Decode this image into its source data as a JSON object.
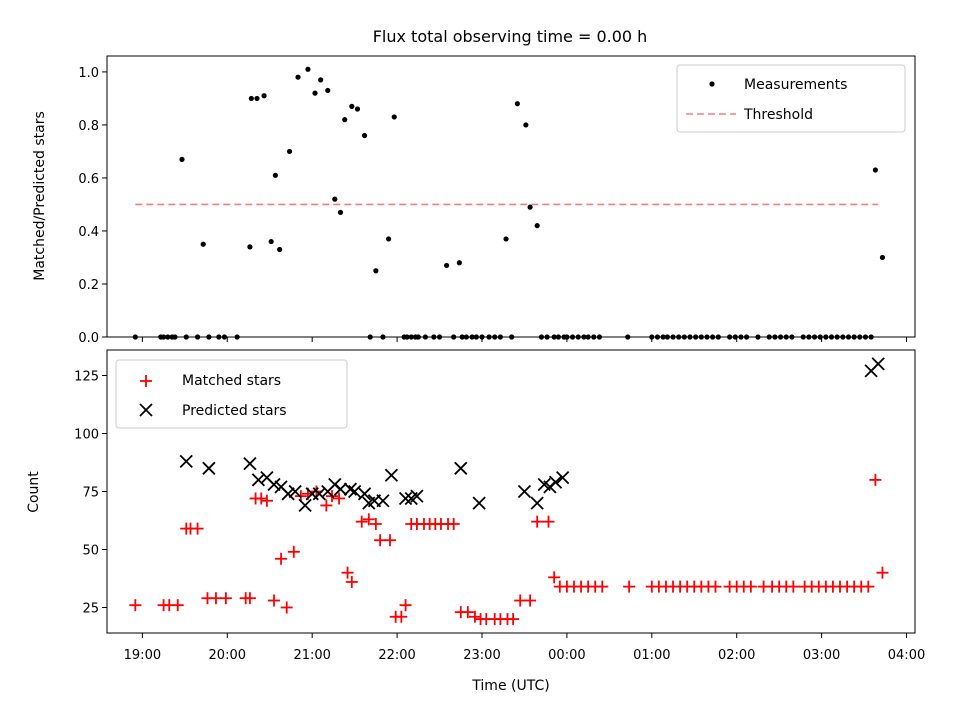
{
  "chart_data": [
    {
      "type": "scatter",
      "title": "Flux total observing time = 0.00 h",
      "xlabel": "",
      "ylabel": "Matched/Predicted stars",
      "ylim": [
        0.0,
        1.06
      ],
      "xlim": [
        "18:35",
        "04:06"
      ],
      "x_ticks": [],
      "y_ticks": [
        "0.0",
        "0.2",
        "0.4",
        "0.6",
        "0.8",
        "1.0"
      ],
      "legend_position": "upper right",
      "threshold": {
        "name": "Threshold",
        "value": 0.5,
        "color": "#f08080",
        "style": "dashed",
        "x_start": "18:55",
        "x_end": "03:40"
      },
      "series": [
        {
          "name": "Measurements",
          "color": "#000000",
          "marker": "dot",
          "x": [
            "18:55",
            "19:13",
            "19:15",
            "19:18",
            "19:21",
            "19:23",
            "19:28",
            "19:31",
            "19:39",
            "19:43",
            "19:47",
            "19:54",
            "19:58",
            "20:07",
            "20:16",
            "20:17",
            "20:21",
            "20:26",
            "20:31",
            "20:34",
            "20:37",
            "20:44",
            "20:50",
            "20:57",
            "21:02",
            "21:06",
            "21:11",
            "21:16",
            "21:20",
            "21:23",
            "21:28",
            "21:32",
            "21:37",
            "21:41",
            "21:45",
            "21:50",
            "21:54",
            "21:58",
            "22:05",
            "22:07",
            "22:10",
            "22:13",
            "22:15",
            "22:20",
            "22:26",
            "22:30",
            "22:35",
            "22:40",
            "22:44",
            "22:46",
            "22:49",
            "22:53",
            "22:56",
            "23:00",
            "23:05",
            "23:09",
            "23:13",
            "23:17",
            "23:21",
            "23:25",
            "23:31",
            "23:34",
            "23:39",
            "23:42",
            "23:46",
            "23:51",
            "23:54",
            "23:58",
            "24:00",
            "24:04",
            "24:08",
            "24:12",
            "24:15",
            "24:19",
            "24:23",
            "24:43",
            "25:00",
            "25:04",
            "25:08",
            "25:11",
            "25:15",
            "25:19",
            "25:23",
            "25:27",
            "25:31",
            "25:35",
            "25:39",
            "25:43",
            "25:47",
            "25:55",
            "25:59",
            "26:03",
            "26:07",
            "26:15",
            "26:23",
            "26:27",
            "26:31",
            "26:35",
            "26:39",
            "26:47",
            "26:51",
            "26:55",
            "26:59",
            "27:03",
            "27:07",
            "27:11",
            "27:15",
            "27:19",
            "27:23",
            "27:27",
            "27:31",
            "27:35",
            "27:38",
            "27:43"
          ],
          "y": [
            0.0,
            0.0,
            0.0,
            0.0,
            0.0,
            0.0,
            0.67,
            0.0,
            0.0,
            0.35,
            0.0,
            0.0,
            0.0,
            0.0,
            0.34,
            0.9,
            0.9,
            0.91,
            0.36,
            0.61,
            0.33,
            0.7,
            0.98,
            1.01,
            0.92,
            0.97,
            0.93,
            0.52,
            0.47,
            0.82,
            0.87,
            0.86,
            0.76,
            0.0,
            0.25,
            0.0,
            0.37,
            0.83,
            0.0,
            0.0,
            0.0,
            0.0,
            0.0,
            0.0,
            0.0,
            0.0,
            0.27,
            0.0,
            0.28,
            0.0,
            0.0,
            0.0,
            0.0,
            0.0,
            0.0,
            0.0,
            0.0,
            0.37,
            0.0,
            0.88,
            0.8,
            0.49,
            0.42,
            0.0,
            0.0,
            0.0,
            0.0,
            0.0,
            0.0,
            0.0,
            0.0,
            0.0,
            0.0,
            0.0,
            0.0,
            0.0,
            0.0,
            0.0,
            0.0,
            0.0,
            0.0,
            0.0,
            0.0,
            0.0,
            0.0,
            0.0,
            0.0,
            0.0,
            0.0,
            0.0,
            0.0,
            0.0,
            0.0,
            0.0,
            0.0,
            0.0,
            0.0,
            0.0,
            0.0,
            0.0,
            0.0,
            0.0,
            0.0,
            0.0,
            0.0,
            0.0,
            0.0,
            0.0,
            0.0,
            0.0,
            0.0,
            0.0,
            0.63,
            0.3
          ]
        }
      ]
    },
    {
      "type": "scatter",
      "title": "",
      "xlabel": "Time (UTC)",
      "ylabel": "Count",
      "ylim": [
        14,
        136
      ],
      "xlim": [
        "18:35",
        "04:06"
      ],
      "x_ticks": [
        "19:00",
        "20:00",
        "21:00",
        "22:00",
        "23:00",
        "00:00",
        "01:00",
        "02:00",
        "03:00",
        "04:00"
      ],
      "y_ticks": [
        "25",
        "50",
        "75",
        "100",
        "125"
      ],
      "legend_position": "upper left",
      "series": [
        {
          "name": "Matched stars",
          "color": "#ff0000",
          "marker": "plus",
          "x": [
            "18:55",
            "19:15",
            "19:19",
            "19:25",
            "19:31",
            "19:34",
            "19:39",
            "19:46",
            "19:52",
            "19:59",
            "20:13",
            "20:16",
            "20:20",
            "20:24",
            "20:28",
            "20:33",
            "20:38",
            "20:42",
            "20:47",
            "20:52",
            "20:57",
            "21:03",
            "21:10",
            "21:14",
            "21:19",
            "21:25",
            "21:28",
            "21:35",
            "21:40",
            "21:45",
            "21:48",
            "21:55",
            "21:59",
            "22:03",
            "22:06",
            "22:10",
            "22:14",
            "22:19",
            "22:23",
            "22:27",
            "22:31",
            "22:36",
            "22:40",
            "22:45",
            "22:50",
            "22:55",
            "22:59",
            "23:03",
            "23:09",
            "23:13",
            "23:18",
            "23:22",
            "23:27",
            "23:34",
            "23:39",
            "23:47",
            "23:51",
            "23:55",
            "24:00",
            "24:05",
            "24:10",
            "24:15",
            "24:20",
            "24:25",
            "24:44",
            "25:00",
            "25:05",
            "25:10",
            "25:15",
            "25:20",
            "25:25",
            "25:30",
            "25:35",
            "25:40",
            "25:45",
            "25:55",
            "26:00",
            "26:05",
            "26:10",
            "26:19",
            "26:25",
            "26:30",
            "26:35",
            "26:40",
            "26:48",
            "26:53",
            "26:58",
            "27:03",
            "27:08",
            "27:13",
            "27:18",
            "27:23",
            "27:28",
            "27:33",
            "27:38",
            "27:43"
          ],
          "y": [
            26,
            26,
            26,
            26,
            59,
            59,
            59,
            29,
            29,
            29,
            29,
            29,
            72,
            72,
            71,
            28,
            46,
            25,
            49,
            73,
            74,
            75,
            69,
            73,
            72,
            40,
            36,
            62,
            63,
            61,
            54,
            54,
            21,
            21,
            26,
            61,
            61,
            61,
            61,
            61,
            61,
            61,
            61,
            23,
            23,
            21,
            20,
            20,
            20,
            20,
            20,
            20,
            28,
            28,
            62,
            62,
            38,
            34,
            34,
            34,
            34,
            34,
            34,
            34,
            34,
            34,
            34,
            34,
            34,
            34,
            34,
            34,
            34,
            34,
            34,
            34,
            34,
            34,
            34,
            34,
            34,
            34,
            34,
            34,
            34,
            34,
            34,
            34,
            34,
            34,
            34,
            34,
            34,
            34,
            80,
            40
          ]
        },
        {
          "name": "Predicted stars",
          "color": "#000000",
          "marker": "x",
          "x": [
            "19:31",
            "19:47",
            "20:16",
            "20:22",
            "20:28",
            "20:33",
            "20:38",
            "20:43",
            "20:48",
            "20:55",
            "21:00",
            "21:05",
            "21:11",
            "21:16",
            "21:20",
            "21:27",
            "21:30",
            "21:37",
            "21:40",
            "21:44",
            "21:50",
            "21:56",
            "22:06",
            "22:10",
            "22:14",
            "22:45",
            "22:58",
            "23:30",
            "23:39",
            "23:44",
            "23:48",
            "23:52",
            "23:57",
            "27:35",
            "27:40"
          ],
          "y": [
            88,
            85,
            87,
            80,
            81,
            78,
            77,
            74,
            75,
            69,
            74,
            74,
            75,
            78,
            76,
            76,
            75,
            74,
            70,
            71,
            71,
            82,
            72,
            72,
            73,
            85,
            70,
            75,
            70,
            78,
            77,
            79,
            81,
            127,
            130
          ]
        }
      ]
    }
  ]
}
